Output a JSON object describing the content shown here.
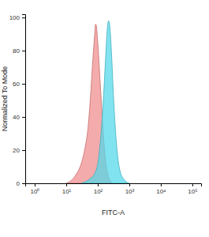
{
  "chart_data": {
    "type": "area",
    "x_label": "FITC-A",
    "y_label": "Normalized To Mode",
    "log": "x",
    "grid": false,
    "xlim": [
      0.5,
      190000
    ],
    "xticks": [
      {
        "value": 1,
        "label": "10⁰"
      },
      {
        "value": 10,
        "label": "10¹"
      },
      {
        "value": 100,
        "label": "10²"
      },
      {
        "value": 1000,
        "label": "10³"
      },
      {
        "value": 10000,
        "label": "10⁴"
      },
      {
        "value": 100000,
        "label": "10⁵"
      }
    ],
    "ylim": [
      0,
      102
    ],
    "yticks": [
      0,
      20,
      40,
      60,
      80,
      100
    ],
    "series": [
      {
        "color": "#f08a8a",
        "x": [
          10,
          15,
          20,
          30,
          40,
          50,
          60,
          70,
          80,
          85,
          90,
          100,
          120,
          150,
          180,
          220,
          280
        ],
        "values": [
          0,
          2,
          5,
          12,
          22,
          35,
          55,
          75,
          90,
          96,
          95,
          85,
          60,
          30,
          12,
          4,
          0
        ]
      },
      {
        "color": "#52d8ea",
        "x": [
          30,
          50,
          80,
          100,
          120,
          150,
          180,
          200,
          220,
          240,
          270,
          320,
          400,
          500,
          700,
          1000
        ],
        "values": [
          0,
          2,
          6,
          12,
          25,
          50,
          78,
          93,
          98,
          95,
          80,
          50,
          22,
          8,
          2,
          0
        ]
      }
    ]
  }
}
